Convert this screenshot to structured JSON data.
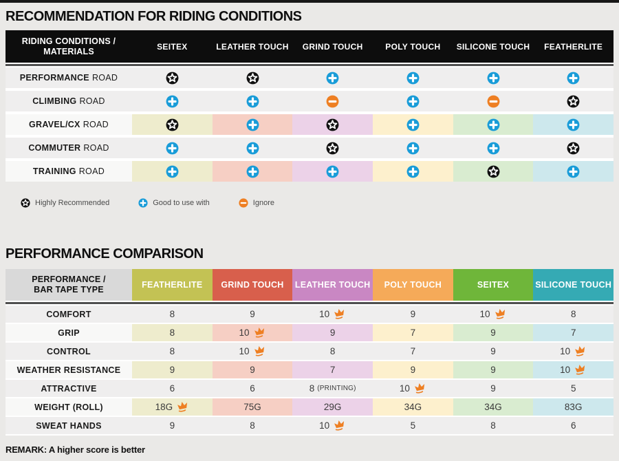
{
  "colors": {
    "pale_sequence": [
      "#eeeccd",
      "#f6cfc4",
      "#ecd2e8",
      "#fdf0cd",
      "#d9ecd0",
      "#cde8ed"
    ],
    "row_gray": "#efeeee",
    "row_light": "#f8f8f7",
    "icon_star_bg": "#111111",
    "icon_plus_bg": "#199cd8",
    "icon_minus_bg": "#ee7f23",
    "crown": "#ee7f23",
    "header_black": "#0d0d0d"
  },
  "riding_table": {
    "title": "RECOMMENDATION FOR RIDING CONDITIONS",
    "corner_header": "RIDING CONDITIONS /\nMATERIALS",
    "columns": [
      "SEITEX",
      "LEATHER TOUCH",
      "GRIND TOUCH",
      "POLY TOUCH",
      "SILICONE TOUCH",
      "FEATHERLITE"
    ],
    "rows": [
      {
        "label_bold": "PERFORMANCE",
        "label_rest": "ROAD",
        "colored": false,
        "cells": [
          "star",
          "star",
          "plus",
          "plus",
          "plus",
          "plus"
        ]
      },
      {
        "label_bold": "CLIMBING",
        "label_rest": "ROAD",
        "colored": false,
        "cells": [
          "plus",
          "plus",
          "minus",
          "plus",
          "minus",
          "star"
        ]
      },
      {
        "label_bold": "GRAVEL/CX",
        "label_rest": "ROAD",
        "colored": true,
        "cells": [
          "star",
          "plus",
          "star",
          "plus",
          "plus",
          "plus"
        ]
      },
      {
        "label_bold": "COMMUTER",
        "label_rest": "ROAD",
        "colored": false,
        "cells": [
          "plus",
          "plus",
          "star",
          "plus",
          "plus",
          "star"
        ]
      },
      {
        "label_bold": "TRAINING",
        "label_rest": "ROAD",
        "colored": true,
        "cells": [
          "plus",
          "plus",
          "plus",
          "plus",
          "star",
          "plus"
        ]
      }
    ],
    "legend": [
      {
        "icon": "star",
        "label": "Highly Recommended"
      },
      {
        "icon": "plus",
        "label": "Good to use with"
      },
      {
        "icon": "minus",
        "label": "Ignore"
      }
    ]
  },
  "performance_table": {
    "title": "PERFORMANCE COMPARISON",
    "corner_header": "PERFORMANCE /\nBAR TAPE TYPE",
    "columns": [
      {
        "label": "FEATHERLITE",
        "color": "#c3c254"
      },
      {
        "label": "GRIND TOUCH",
        "color": "#d85f4c"
      },
      {
        "label": "LEATHER TOUCH",
        "color": "#c987c3"
      },
      {
        "label": "POLY TOUCH",
        "color": "#f5aa59"
      },
      {
        "label": "SEITEX",
        "color": "#6fb63a"
      },
      {
        "label": "SILICONE TOUCH",
        "color": "#35aab4"
      }
    ],
    "rows": [
      {
        "label": "COMFORT",
        "colored": false,
        "values": [
          {
            "text": "8"
          },
          {
            "text": "9"
          },
          {
            "text": "10",
            "crown": true
          },
          {
            "text": "9"
          },
          {
            "text": "10",
            "crown": true
          },
          {
            "text": "8"
          }
        ]
      },
      {
        "label": "GRIP",
        "colored": true,
        "values": [
          {
            "text": "8"
          },
          {
            "text": "10",
            "crown": true
          },
          {
            "text": "9"
          },
          {
            "text": "7"
          },
          {
            "text": "9"
          },
          {
            "text": "7"
          }
        ]
      },
      {
        "label": "CONTROL",
        "colored": false,
        "values": [
          {
            "text": "8"
          },
          {
            "text": "10",
            "crown": true
          },
          {
            "text": "8"
          },
          {
            "text": "7"
          },
          {
            "text": "9"
          },
          {
            "text": "10",
            "crown": true
          }
        ]
      },
      {
        "label": "WEATHER RESISTANCE",
        "colored": true,
        "values": [
          {
            "text": "9"
          },
          {
            "text": "9"
          },
          {
            "text": "7"
          },
          {
            "text": "9"
          },
          {
            "text": "9"
          },
          {
            "text": "10",
            "crown": true
          }
        ]
      },
      {
        "label": "ATTRACTIVE",
        "colored": false,
        "values": [
          {
            "text": "6"
          },
          {
            "text": "6"
          },
          {
            "text": "8",
            "suffix": "(PRINTING)"
          },
          {
            "text": "10",
            "crown": true
          },
          {
            "text": "9"
          },
          {
            "text": "5"
          }
        ]
      },
      {
        "label": "WEIGHT (ROLL)",
        "colored": true,
        "values": [
          {
            "text": "18G",
            "crown": true
          },
          {
            "text": "75G"
          },
          {
            "text": "29G"
          },
          {
            "text": "34G"
          },
          {
            "text": "34G"
          },
          {
            "text": "83G"
          }
        ]
      },
      {
        "label": "SWEAT HANDS",
        "colored": false,
        "values": [
          {
            "text": "9"
          },
          {
            "text": "8"
          },
          {
            "text": "10",
            "crown": true
          },
          {
            "text": "5"
          },
          {
            "text": "8"
          },
          {
            "text": "6"
          }
        ]
      }
    ],
    "remark": "REMARK: A higher score is better"
  },
  "chart_data": [
    {
      "type": "table",
      "title": "RECOMMENDATION FOR RIDING CONDITIONS",
      "corner": "RIDING CONDITIONS / MATERIALS",
      "columns": [
        "SEITEX",
        "LEATHER TOUCH",
        "GRIND TOUCH",
        "POLY TOUCH",
        "SILICONE TOUCH",
        "FEATHERLITE"
      ],
      "legend": {
        "star": "Highly Recommended",
        "plus": "Good to use with",
        "minus": "Ignore"
      },
      "rows": [
        [
          "PERFORMANCE ROAD",
          "star",
          "star",
          "plus",
          "plus",
          "plus",
          "plus"
        ],
        [
          "CLIMBING ROAD",
          "plus",
          "plus",
          "minus",
          "plus",
          "minus",
          "star"
        ],
        [
          "GRAVEL/CX ROAD",
          "star",
          "plus",
          "star",
          "plus",
          "plus",
          "plus"
        ],
        [
          "COMMUTER ROAD",
          "plus",
          "plus",
          "star",
          "plus",
          "plus",
          "star"
        ],
        [
          "TRAINING ROAD",
          "plus",
          "plus",
          "plus",
          "plus",
          "star",
          "plus"
        ]
      ]
    },
    {
      "type": "table",
      "title": "PERFORMANCE COMPARISON",
      "corner": "PERFORMANCE / BAR TAPE TYPE",
      "columns": [
        "FEATHERLITE",
        "GRIND TOUCH",
        "LEATHER TOUCH",
        "POLY TOUCH",
        "SEITEX",
        "SILICONE TOUCH"
      ],
      "crown_marks_best": true,
      "rows": [
        [
          "COMFORT",
          "8",
          "9",
          "10♛",
          "9",
          "10♛",
          "8"
        ],
        [
          "GRIP",
          "8",
          "10♛",
          "9",
          "7",
          "9",
          "7"
        ],
        [
          "CONTROL",
          "8",
          "10♛",
          "8",
          "7",
          "9",
          "10♛"
        ],
        [
          "WEATHER RESISTANCE",
          "9",
          "9",
          "7",
          "9",
          "9",
          "10♛"
        ],
        [
          "ATTRACTIVE",
          "6",
          "6",
          "8 (PRINTING)",
          "10♛",
          "9",
          "5"
        ],
        [
          "WEIGHT (ROLL)",
          "18G♛",
          "75G",
          "29G",
          "34G",
          "34G",
          "83G"
        ],
        [
          "SWEAT HANDS",
          "9",
          "8",
          "10♛",
          "5",
          "8",
          "6"
        ]
      ],
      "remark": "REMARK: A higher score is better"
    }
  ]
}
